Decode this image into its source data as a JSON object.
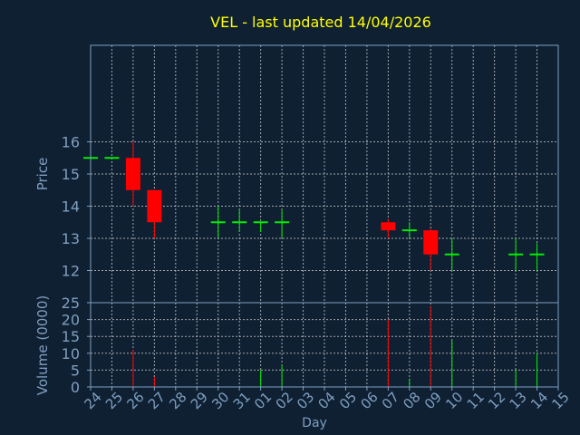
{
  "chart_data": {
    "type": "candlestick",
    "title": "VEL - last updated 14/04/2026",
    "xlabel": "Day",
    "price_panel": {
      "ylabel": "Price",
      "ylim": [
        11,
        19
      ],
      "yticks": [
        12,
        13,
        14,
        15,
        16
      ]
    },
    "volume_panel": {
      "ylabel": "Volume (0000)",
      "ylim": [
        0,
        25
      ],
      "yticks": [
        0,
        5,
        10,
        15,
        20,
        25
      ]
    },
    "categories": [
      "24",
      "25",
      "26",
      "27",
      "28",
      "29",
      "30",
      "31",
      "01",
      "02",
      "03",
      "04",
      "05",
      "06",
      "07",
      "08",
      "09",
      "10",
      "11",
      "12",
      "13",
      "14",
      "15"
    ],
    "candles": [
      {
        "day": "24",
        "open": 15.5,
        "high": 15.5,
        "low": 15.5,
        "close": 15.5,
        "volume": 0
      },
      {
        "day": "25",
        "open": 15.5,
        "high": 15.5,
        "low": 15.5,
        "close": 15.5,
        "volume": 0
      },
      {
        "day": "26",
        "open": 15.5,
        "high": 16.0,
        "low": 14.0,
        "close": 14.5,
        "volume": 11
      },
      {
        "day": "27",
        "open": 14.5,
        "high": 14.5,
        "low": 13.0,
        "close": 13.5,
        "volume": 3
      },
      {
        "day": "30",
        "open": 13.5,
        "high": 14.0,
        "low": 13.0,
        "close": 13.5,
        "volume": 0
      },
      {
        "day": "31",
        "open": 13.5,
        "high": 13.9,
        "low": 13.2,
        "close": 13.5,
        "volume": 0
      },
      {
        "day": "01",
        "open": 13.5,
        "high": 13.5,
        "low": 13.2,
        "close": 13.5,
        "volume": 5
      },
      {
        "day": "02",
        "open": 13.5,
        "high": 13.9,
        "low": 13.0,
        "close": 13.5,
        "volume": 6.5
      },
      {
        "day": "07",
        "open": 13.5,
        "high": 13.6,
        "low": 13.0,
        "close": 13.25,
        "volume": 20
      },
      {
        "day": "08",
        "open": 13.25,
        "high": 13.5,
        "low": 13.0,
        "close": 13.25,
        "volume": 2.5
      },
      {
        "day": "09",
        "open": 13.25,
        "high": 13.3,
        "low": 12.0,
        "close": 12.5,
        "volume": 24
      },
      {
        "day": "10",
        "open": 12.5,
        "high": 13.0,
        "low": 12.0,
        "close": 12.5,
        "volume": 14
      },
      {
        "day": "13",
        "open": 12.5,
        "high": 13.0,
        "low": 12.0,
        "close": 12.5,
        "volume": 5
      },
      {
        "day": "14",
        "open": 12.5,
        "high": 12.85,
        "low": 12.0,
        "close": 12.5,
        "volume": 10
      }
    ],
    "grid": true,
    "colors": {
      "background": "#0f2033",
      "title": "#ffff00",
      "axis_text": "#7f9fbf",
      "grid": "#c8c8c8",
      "up": "#00ee00",
      "down": "#ff0000",
      "frame": "#7f9fbf"
    }
  }
}
